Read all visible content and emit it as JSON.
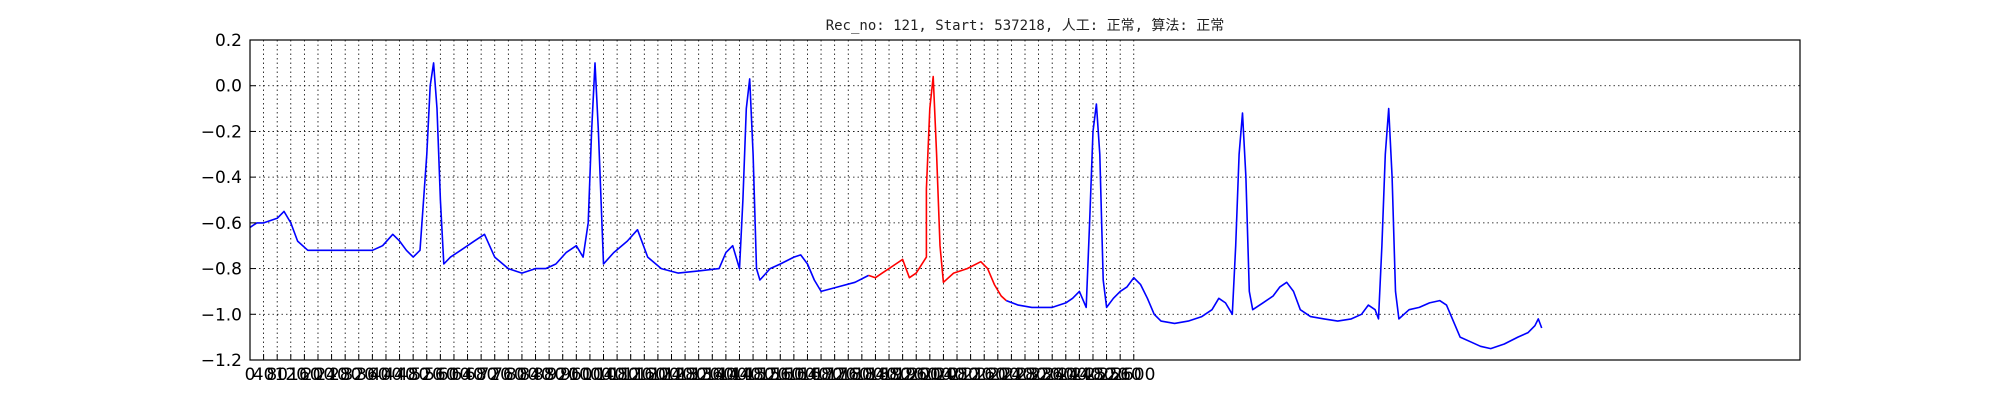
{
  "chart_data": {
    "type": "line",
    "title": "Rec_no: 121, Start: 537218, 人工: 正常, 算法: 正常",
    "xlabel": "",
    "ylabel": "",
    "xlim": [
      0,
      4560
    ],
    "ylim": [
      -1.2,
      0.2
    ],
    "grid": true,
    "xticks": [
      0,
      40,
      80,
      120,
      160,
      200,
      240,
      280,
      320,
      360,
      400,
      440,
      480,
      520,
      560,
      600,
      640,
      680,
      720,
      760,
      800,
      840,
      880,
      920,
      960,
      1000,
      1040,
      1080,
      1120,
      1160,
      1200,
      1240,
      1280,
      1320,
      1360,
      1400,
      1440,
      1480,
      1520,
      1560,
      1600,
      1640,
      1680,
      1720,
      1760,
      1800,
      1840,
      1880,
      1920,
      1960,
      2000,
      2040,
      2080,
      2120,
      2160,
      2200,
      2240,
      2280,
      2320,
      2360,
      2400,
      2440,
      2480,
      2520,
      2560,
      2600
    ],
    "xtick_labels": [
      "0",
      "40",
      "80",
      "120",
      "160",
      "200",
      "240",
      "280",
      "320",
      "360",
      "400",
      "440",
      "480",
      "520",
      "560",
      "600",
      "640",
      "680",
      "720",
      "760",
      "800",
      "840",
      "880",
      "920",
      "960",
      "1000",
      "1040",
      "1080",
      "1120",
      "1160",
      "1200",
      "1240",
      "1280",
      "1320",
      "1360",
      "1400",
      "1440",
      "1480",
      "1520",
      "1560",
      "1600",
      "1640",
      "1680",
      "1720",
      "1760",
      "1800",
      "1840",
      "1880",
      "1920",
      "1960",
      "2000",
      "2040",
      "2080",
      "2120",
      "2160",
      "2200",
      "2240",
      "2280",
      "2320",
      "2360",
      "2400",
      "2440",
      "2480",
      "2520",
      "2560",
      "2600"
    ],
    "yticks": [
      -1.2,
      -1.0,
      -0.8,
      -0.6,
      -0.4,
      -0.2,
      0.0,
      0.2
    ],
    "ytick_labels": [
      "−1.2",
      "−1.0",
      "−0.8",
      "−0.6",
      "−0.4",
      "−0.2",
      "0.0",
      "0.2"
    ],
    "series": [
      {
        "color": "#0000ff",
        "points": [
          [
            0,
            -0.62
          ],
          [
            20,
            -0.6
          ],
          [
            40,
            -0.6
          ],
          [
            80,
            -0.58
          ],
          [
            100,
            -0.55
          ],
          [
            120,
            -0.6
          ],
          [
            140,
            -0.68
          ],
          [
            170,
            -0.72
          ],
          [
            220,
            -0.72
          ],
          [
            300,
            -0.72
          ],
          [
            360,
            -0.72
          ],
          [
            390,
            -0.7
          ],
          [
            420,
            -0.65
          ],
          [
            440,
            -0.68
          ],
          [
            460,
            -0.72
          ],
          [
            480,
            -0.75
          ],
          [
            500,
            -0.72
          ],
          [
            520,
            -0.3
          ],
          [
            530,
            -0.0
          ],
          [
            540,
            0.1
          ],
          [
            550,
            -0.1
          ],
          [
            560,
            -0.5
          ],
          [
            570,
            -0.78
          ],
          [
            590,
            -0.75
          ],
          [
            620,
            -0.72
          ],
          [
            660,
            -0.68
          ],
          [
            690,
            -0.65
          ],
          [
            720,
            -0.75
          ],
          [
            760,
            -0.8
          ],
          [
            800,
            -0.82
          ],
          [
            840,
            -0.8
          ],
          [
            870,
            -0.8
          ],
          [
            900,
            -0.78
          ],
          [
            930,
            -0.73
          ],
          [
            960,
            -0.7
          ],
          [
            980,
            -0.75
          ],
          [
            995,
            -0.6
          ],
          [
            1005,
            -0.2
          ],
          [
            1015,
            0.1
          ],
          [
            1025,
            -0.2
          ],
          [
            1040,
            -0.78
          ],
          [
            1070,
            -0.73
          ],
          [
            1110,
            -0.68
          ],
          [
            1140,
            -0.63
          ],
          [
            1170,
            -0.75
          ],
          [
            1210,
            -0.8
          ],
          [
            1260,
            -0.82
          ],
          [
            1320,
            -0.81
          ],
          [
            1380,
            -0.8
          ],
          [
            1400,
            -0.73
          ],
          [
            1420,
            -0.7
          ],
          [
            1440,
            -0.8
          ],
          [
            1450,
            -0.5
          ],
          [
            1460,
            -0.1
          ],
          [
            1470,
            0.03
          ],
          [
            1480,
            -0.3
          ],
          [
            1490,
            -0.8
          ],
          [
            1500,
            -0.85
          ],
          [
            1530,
            -0.8
          ],
          [
            1560,
            -0.78
          ],
          [
            1600,
            -0.75
          ],
          [
            1620,
            -0.74
          ],
          [
            1640,
            -0.78
          ],
          [
            1660,
            -0.85
          ],
          [
            1680,
            -0.9
          ],
          [
            1730,
            -0.88
          ],
          [
            1780,
            -0.86
          ],
          [
            1820,
            -0.83
          ]
        ]
      },
      {
        "color": "#ff0000",
        "points": [
          [
            1820,
            -0.83
          ],
          [
            1840,
            -0.84
          ],
          [
            1860,
            -0.82
          ],
          [
            1880,
            -0.8
          ],
          [
            1900,
            -0.78
          ],
          [
            1920,
            -0.76
          ],
          [
            1930,
            -0.8
          ],
          [
            1940,
            -0.84
          ],
          [
            1960,
            -0.82
          ],
          [
            1990,
            -0.75
          ],
          [
            1990,
            -0.45
          ],
          [
            2000,
            -0.1
          ],
          [
            2010,
            0.04
          ],
          [
            2020,
            -0.3
          ],
          [
            2030,
            -0.7
          ],
          [
            2040,
            -0.86
          ],
          [
            2070,
            -0.82
          ],
          [
            2110,
            -0.8
          ],
          [
            2150,
            -0.77
          ],
          [
            2170,
            -0.8
          ],
          [
            2190,
            -0.87
          ],
          [
            2210,
            -0.92
          ],
          [
            2225,
            -0.94
          ]
        ]
      },
      {
        "color": "#0000ff",
        "points": [
          [
            2225,
            -0.94
          ],
          [
            2260,
            -0.96
          ],
          [
            2300,
            -0.97
          ],
          [
            2360,
            -0.97
          ],
          [
            2400,
            -0.95
          ],
          [
            2420,
            -0.93
          ],
          [
            2440,
            -0.9
          ],
          [
            2460,
            -0.97
          ],
          [
            2470,
            -0.6
          ],
          [
            2480,
            -0.2
          ],
          [
            2490,
            -0.08
          ],
          [
            2500,
            -0.3
          ],
          [
            2510,
            -0.85
          ],
          [
            2520,
            -0.97
          ],
          [
            2540,
            -0.93
          ],
          [
            2560,
            -0.9
          ],
          [
            2580,
            -0.88
          ],
          [
            2600,
            -0.84
          ],
          [
            2620,
            -0.87
          ],
          [
            2640,
            -0.93
          ],
          [
            2660,
            -1.0
          ],
          [
            2680,
            -1.03
          ],
          [
            2720,
            -1.04
          ],
          [
            2760,
            -1.03
          ],
          [
            2800,
            -1.01
          ],
          [
            2830,
            -0.98
          ],
          [
            2850,
            -0.93
          ],
          [
            2870,
            -0.95
          ],
          [
            2890,
            -1.0
          ],
          [
            2900,
            -0.7
          ],
          [
            2910,
            -0.3
          ],
          [
            2920,
            -0.12
          ],
          [
            2930,
            -0.4
          ],
          [
            2940,
            -0.9
          ],
          [
            2950,
            -0.98
          ],
          [
            2980,
            -0.95
          ],
          [
            3010,
            -0.92
          ],
          [
            3030,
            -0.88
          ],
          [
            3050,
            -0.86
          ],
          [
            3070,
            -0.9
          ],
          [
            3090,
            -0.98
          ],
          [
            3120,
            -1.01
          ],
          [
            3160,
            -1.02
          ],
          [
            3200,
            -1.03
          ],
          [
            3240,
            -1.02
          ],
          [
            3270,
            -1.0
          ],
          [
            3290,
            -0.96
          ],
          [
            3310,
            -0.98
          ],
          [
            3320,
            -1.02
          ],
          [
            3330,
            -0.7
          ],
          [
            3340,
            -0.3
          ],
          [
            3350,
            -0.1
          ],
          [
            3360,
            -0.4
          ],
          [
            3370,
            -0.9
          ],
          [
            3380,
            -1.02
          ],
          [
            3410,
            -0.98
          ],
          [
            3440,
            -0.97
          ],
          [
            3470,
            -0.95
          ],
          [
            3500,
            -0.94
          ],
          [
            3520,
            -0.96
          ],
          [
            3540,
            -1.03
          ],
          [
            3560,
            -1.1
          ],
          [
            3590,
            -1.12
          ],
          [
            3620,
            -1.14
          ],
          [
            3650,
            -1.15
          ],
          [
            3690,
            -1.13
          ],
          [
            3730,
            -1.1
          ],
          [
            3760,
            -1.08
          ],
          [
            3780,
            -1.05
          ],
          [
            3790,
            -1.02
          ],
          [
            3800,
            -1.06
          ]
        ]
      }
    ]
  }
}
